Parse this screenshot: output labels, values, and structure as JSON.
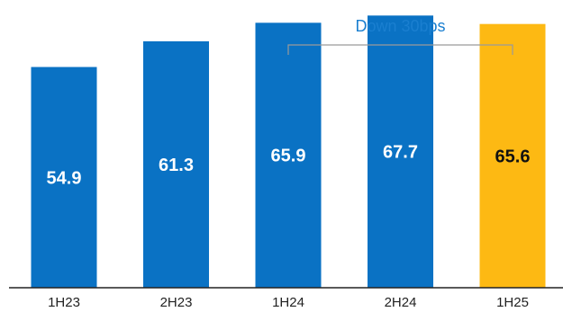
{
  "chart_data": {
    "type": "bar",
    "categories": [
      "1H23",
      "2H23",
      "1H24",
      "2H24",
      "1H25"
    ],
    "values": [
      54.9,
      61.3,
      65.9,
      67.7,
      65.6
    ],
    "value_labels": [
      "54.9",
      "61.3",
      "65.9",
      "67.7",
      "65.6"
    ],
    "ylim": [
      0,
      70
    ],
    "grid": false,
    "colors": {
      "default_bar": "#0A72C4",
      "highlight_bar": "#FDB913",
      "default_label": "#ffffff",
      "highlight_label": "#111111",
      "annotation": "#1A7FD0",
      "bracket": "#9a9a9a",
      "axis": "#222222"
    },
    "highlight_index": 4,
    "annotation": {
      "text": "Down 30bps",
      "from_index": 2,
      "to_index": 4
    }
  }
}
